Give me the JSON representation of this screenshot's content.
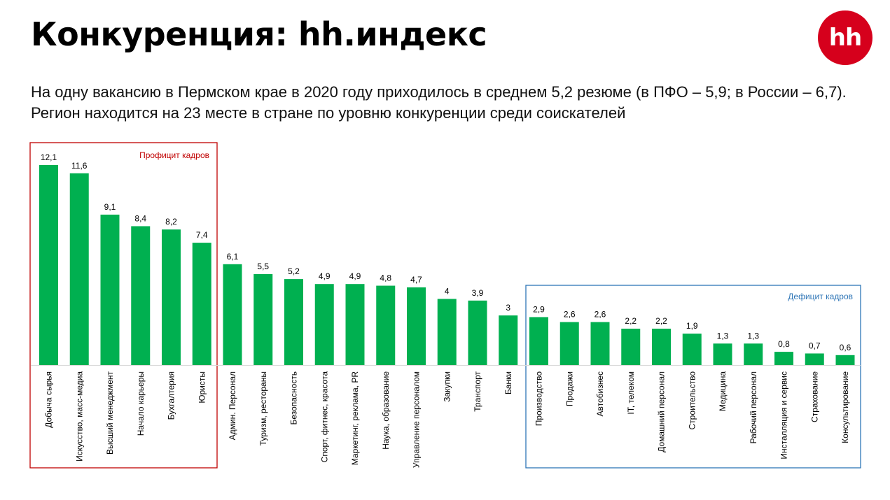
{
  "header": {
    "title": "Конкуренция: hh.индекс",
    "logo_text": "hh"
  },
  "subtitle": {
    "line1": "На одну вакансию в Пермском крае в 2020 году приходилось в среднем 5,2 резюме (в ПФО – 5,9; в России – 6,7).",
    "line2": "Регион находится на 23 месте в стране по уровню конкуренции среди соискателей"
  },
  "colors": {
    "bar": "#00b050",
    "surplus_box": "#c00000",
    "deficit_box": "#2e75b6",
    "logo": "#d6001c"
  },
  "chart_data": {
    "type": "bar",
    "title": "",
    "xlabel": "",
    "ylabel": "",
    "grid": false,
    "categories": [
      "Добыча сырья",
      "Искусство, масс-медиа",
      "Высший менеджмент",
      "Начало карьеры",
      "Бухгалтерия",
      "Юристы",
      "Админ. Персонал",
      "Туризм, рестораны",
      "Безопасность",
      "Спорт, фитнес, красота",
      "Маркетинг, реклама, PR",
      "Наука, образование",
      "Управление персоналом",
      "Закупки",
      "Транспорт",
      "Банки",
      "Производство",
      "Продажи",
      "Автобизнес",
      "IT, телеком",
      "Домашний персонал",
      "Строительство",
      "Медицина",
      "Рабочий персонал",
      "Инсталляция и сервис",
      "Страхование",
      "Консультирование"
    ],
    "values": [
      12.1,
      11.6,
      9.1,
      8.4,
      8.2,
      7.4,
      6.1,
      5.5,
      5.2,
      4.9,
      4.9,
      4.8,
      4.7,
      4.0,
      3.9,
      3.0,
      2.9,
      2.6,
      2.6,
      2.2,
      2.2,
      1.9,
      1.3,
      1.3,
      0.8,
      0.7,
      0.6
    ],
    "value_labels": [
      "12,1",
      "11,6",
      "9,1",
      "8,4",
      "8,2",
      "7,4",
      "6,1",
      "5,5",
      "5,2",
      "4,9",
      "4,9",
      "4,8",
      "4,7",
      "4",
      "3,9",
      "3",
      "2,9",
      "2,6",
      "2,6",
      "2,2",
      "2,2",
      "1,9",
      "1,3",
      "1,3",
      "0,8",
      "0,7",
      "0,6"
    ],
    "ylim": [
      0,
      12.1
    ],
    "groups": [
      {
        "label": "Профицит кадров",
        "from": 0,
        "to": 5,
        "color": "#c00000",
        "label_position": "top-right"
      },
      {
        "label": "Дефицит кадров",
        "from": 16,
        "to": 26,
        "color": "#2e75b6",
        "label_position": "top-right"
      }
    ]
  }
}
